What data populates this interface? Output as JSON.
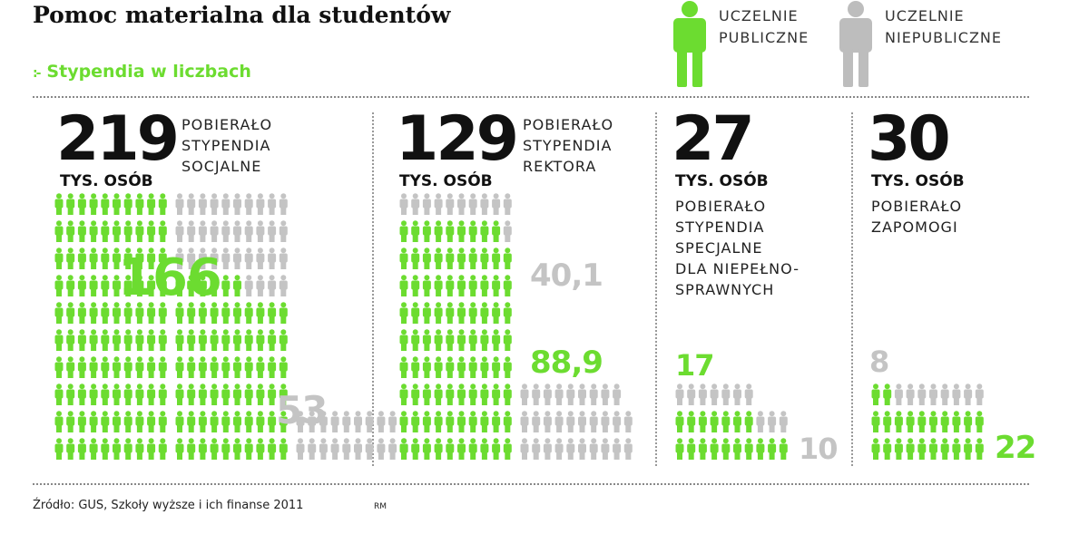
{
  "header": {
    "title": "Pomoc materialna dla studentów",
    "subtitle": "Stypendia w liczbach",
    "bullet": ":-"
  },
  "legend": {
    "public": {
      "line1": "UCZELNIE",
      "line2": "PUBLICZNE",
      "color": "#6cdc30"
    },
    "private": {
      "line1": "UCZELNIE",
      "line2": "NIEPUBLICZNE",
      "color": "#bdbdbd"
    }
  },
  "colors": {
    "public": "#6cdc30",
    "private": "#c4c4c4",
    "text": "#111111"
  },
  "panels": {
    "social": {
      "total": "219",
      "unit": "TYS. OSÓB",
      "desc1": "POBIERAŁO",
      "desc2": "STYPENDIA",
      "desc3": "SOCJALNE"
    },
    "rector": {
      "total": "129",
      "unit": "TYS. OSÓB",
      "desc1": "POBIERAŁO",
      "desc2": "STYPENDIA",
      "desc3": "REKTORA"
    },
    "special": {
      "total": "27",
      "unit": "TYS. OSÓB",
      "desc1": "POBIERAŁO",
      "desc2": "STYPENDIA",
      "desc3": "SPECJALNE",
      "desc4": "DLA NIEPEŁNO-",
      "desc5": "SPRAWNYCH"
    },
    "aid": {
      "total": "30",
      "unit": "TYS. OSÓB",
      "desc1": "POBIERAŁO",
      "desc2": "ZAPOMOGI"
    }
  },
  "chart_data": {
    "type": "bar",
    "unit": "TYS. OSÓB",
    "categories": [
      "STYPENDIA SOCJALNE",
      "STYPENDIA REKTORA",
      "STYPENDIA SPECJALNE DLA NIEPEŁNOSPRAWNYCH",
      "ZAPOMOGI"
    ],
    "totals": [
      219,
      129,
      27,
      30
    ],
    "series": [
      {
        "name": "UCZELNIE PUBLICZNE",
        "values": [
          166,
          88.9,
          17,
          22
        ],
        "labels": [
          "166",
          "88,9",
          "17",
          "22"
        ],
        "color": "#6cdc30"
      },
      {
        "name": "UCZELNIE NIEPUBLICZNE",
        "values": [
          53,
          40.1,
          10,
          8
        ],
        "labels": [
          "53",
          "40,1",
          "10",
          "8"
        ],
        "color": "#c4c4c4"
      }
    ]
  },
  "footer": {
    "source": "Źródło: GUS, Szkoły wyższe i ich finanse 2011",
    "author": "RM"
  }
}
